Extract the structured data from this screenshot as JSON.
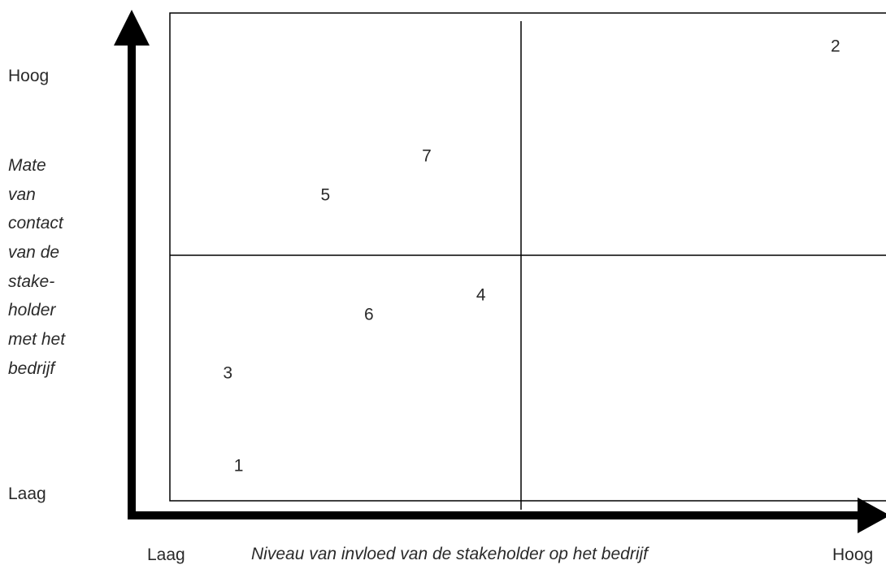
{
  "y_axis": {
    "high_label": "Hoog",
    "low_label": "Laag",
    "title_lines": [
      "Mate",
      "van",
      "contact",
      "van de",
      "stake-",
      "holder",
      "met het",
      "bedrijf"
    ]
  },
  "x_axis": {
    "low_label": "Laag",
    "high_label": "Hoog",
    "title": "Niveau van invloed van de stakeholder op het bedrijf"
  },
  "stakeholders": [
    {
      "label": "1",
      "influence": 0.19,
      "contact": 0.14
    },
    {
      "label": "2",
      "influence": 1.84,
      "contact": 1.86
    },
    {
      "label": "3",
      "influence": 0.16,
      "contact": 0.52
    },
    {
      "label": "4",
      "influence": 0.86,
      "contact": 0.84
    },
    {
      "label": "5",
      "influence": 0.43,
      "contact": 1.25
    },
    {
      "label": "6",
      "influence": 0.55,
      "contact": 0.76
    },
    {
      "label": "7",
      "influence": 0.71,
      "contact": 1.41
    }
  ],
  "colors": {
    "axis": "#000000",
    "text": "#2a2a2a",
    "grid": "#000000"
  }
}
